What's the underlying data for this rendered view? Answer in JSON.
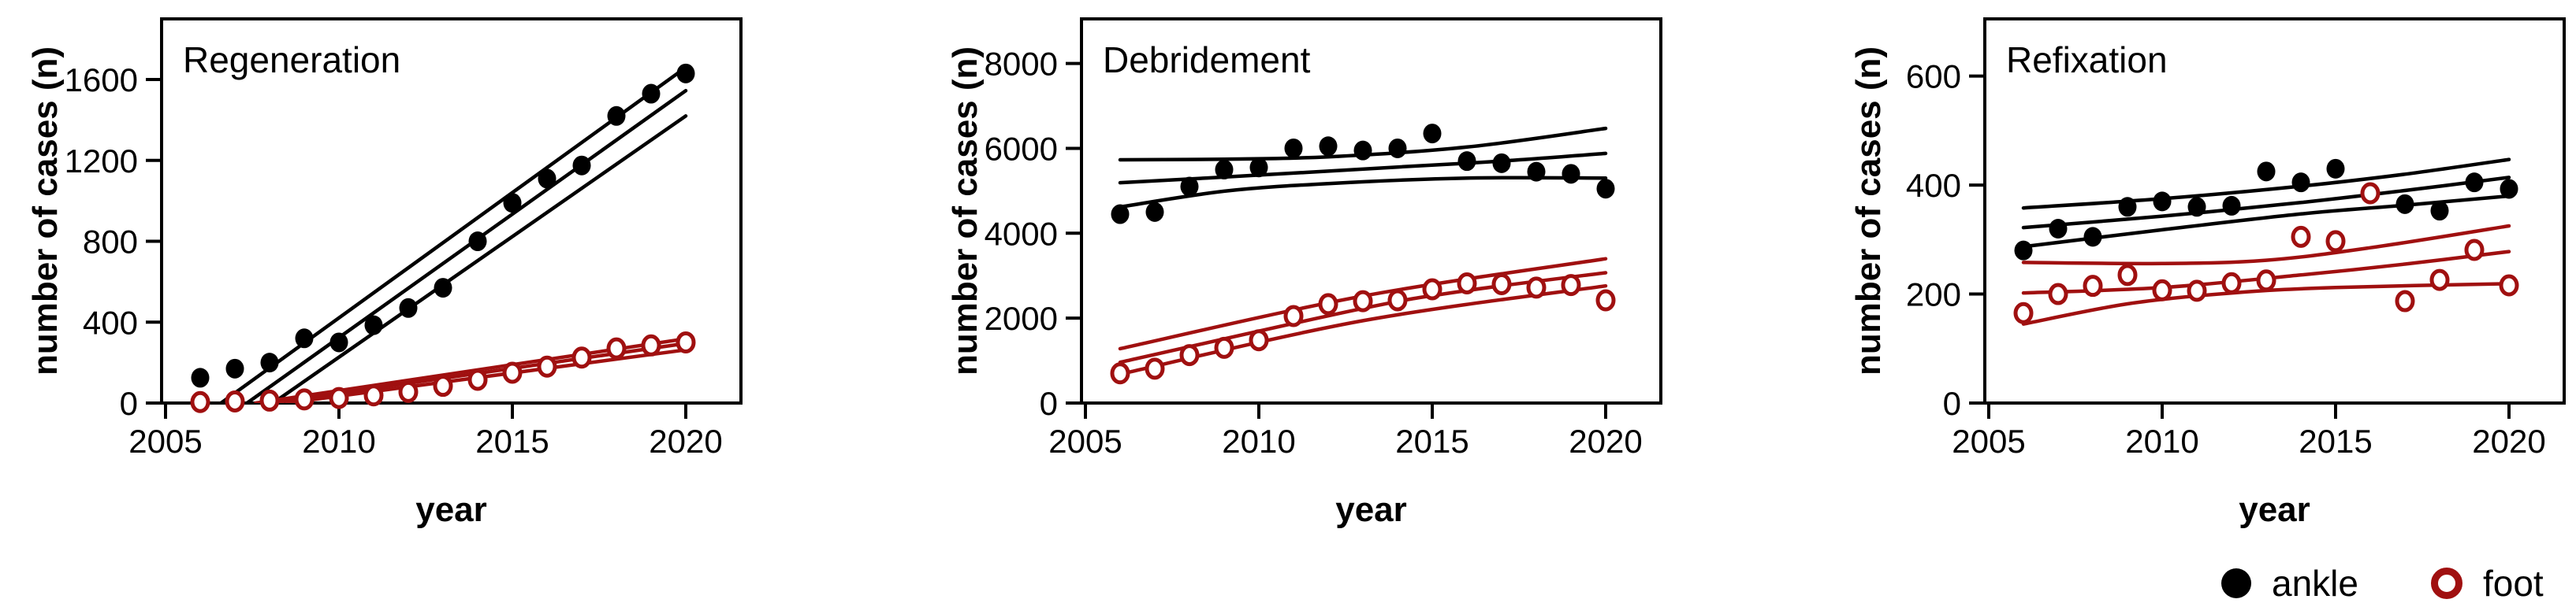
{
  "figure": {
    "background": "#ffffff"
  },
  "colors": {
    "ankle": "#000000",
    "foot": "#a01010",
    "axis": "#000000",
    "text": "#000000"
  },
  "legend": {
    "position": "bottom-right",
    "items": [
      {
        "label": "ankle",
        "marker": "filled-circle",
        "color": "#000000"
      },
      {
        "label": "foot",
        "marker": "open-circle",
        "color": "#a01010"
      }
    ]
  },
  "chart_data": [
    {
      "type": "scatter",
      "title": "Regeneration",
      "xlabel": "year",
      "ylabel": "number of cases (n)",
      "x_ticks": [
        2005,
        2010,
        2015,
        2020
      ],
      "y_ticks": [
        0,
        400,
        800,
        1200,
        1600
      ],
      "xlim": [
        2004.5,
        2021.6
      ],
      "ylim": [
        0,
        1900
      ],
      "grid": false,
      "x": [
        2006,
        2007,
        2008,
        2009,
        2010,
        2011,
        2012,
        2013,
        2014,
        2015,
        2016,
        2017,
        2018,
        2019,
        2020
      ],
      "series": [
        {
          "name": "ankle",
          "marker": "filled",
          "color": "#000000",
          "values": [
            125,
            170,
            200,
            320,
            300,
            385,
            470,
            570,
            800,
            990,
            1110,
            1175,
            1420,
            1530,
            1630
          ]
        },
        {
          "name": "foot",
          "marker": "open",
          "color": "#a01010",
          "values": [
            5,
            8,
            12,
            18,
            25,
            38,
            55,
            85,
            115,
            150,
            180,
            225,
            270,
            285,
            300
          ]
        }
      ],
      "fit_lines": [
        {
          "series": "ankle",
          "role": "ci-upper",
          "points": [
            [
              2006.6,
              0
            ],
            [
              2020,
              1660
            ]
          ]
        },
        {
          "series": "ankle",
          "role": "center",
          "points": [
            [
              2007.35,
              0
            ],
            [
              2020,
              1545
            ]
          ]
        },
        {
          "series": "ankle",
          "role": "ci-lower",
          "points": [
            [
              2008.1,
              0
            ],
            [
              2020,
              1420
            ]
          ]
        },
        {
          "series": "foot",
          "role": "ci-upper",
          "points": [
            [
              2007.6,
              0
            ],
            [
              2020,
              318
            ]
          ]
        },
        {
          "series": "foot",
          "role": "center",
          "points": [
            [
              2008.05,
              0
            ],
            [
              2020,
              295
            ]
          ]
        },
        {
          "series": "foot",
          "role": "ci-lower",
          "points": [
            [
              2008.5,
              0
            ],
            [
              2020,
              263
            ]
          ]
        }
      ]
    },
    {
      "type": "scatter",
      "title": "Debridement",
      "xlabel": "year",
      "ylabel": "number of cases (n)",
      "x_ticks": [
        2005,
        2010,
        2015,
        2020
      ],
      "y_ticks": [
        0,
        2000,
        4000,
        6000,
        8000
      ],
      "xlim": [
        2004.5,
        2021.6
      ],
      "ylim": [
        0,
        9050
      ],
      "grid": false,
      "x": [
        2006,
        2007,
        2008,
        2009,
        2010,
        2011,
        2012,
        2013,
        2014,
        2015,
        2016,
        2017,
        2018,
        2019,
        2020
      ],
      "series": [
        {
          "name": "ankle",
          "marker": "filled",
          "color": "#000000",
          "values": [
            4450,
            4500,
            5100,
            5500,
            5550,
            6000,
            6050,
            5950,
            6000,
            6350,
            5700,
            5650,
            5450,
            5400,
            5050
          ]
        },
        {
          "name": "foot",
          "marker": "open",
          "color": "#a01010",
          "values": [
            700,
            810,
            1130,
            1300,
            1480,
            2050,
            2330,
            2400,
            2420,
            2680,
            2820,
            2800,
            2720,
            2780,
            2420
          ]
        }
      ],
      "fit_lines": [
        {
          "series": "ankle",
          "role": "ci-upper",
          "points": [
            [
              2006,
              5730
            ],
            [
              2009,
              5745
            ],
            [
              2012,
              5800
            ],
            [
              2016,
              6030
            ],
            [
              2020,
              6470
            ]
          ]
        },
        {
          "series": "ankle",
          "role": "center",
          "points": [
            [
              2006,
              5190
            ],
            [
              2010,
              5370
            ],
            [
              2014,
              5560
            ],
            [
              2017,
              5700
            ],
            [
              2020,
              5880
            ]
          ]
        },
        {
          "series": "ankle",
          "role": "ci-lower",
          "points": [
            [
              2006,
              4620
            ],
            [
              2009,
              4990
            ],
            [
              2012,
              5170
            ],
            [
              2016,
              5300
            ],
            [
              2020,
              5300
            ]
          ]
        },
        {
          "series": "foot",
          "role": "ci-upper",
          "points": [
            [
              2006,
              1280
            ],
            [
              2013,
              2520
            ],
            [
              2020,
              3400
            ]
          ]
        },
        {
          "series": "foot",
          "role": "center",
          "points": [
            [
              2006,
              960
            ],
            [
              2013,
              2230
            ],
            [
              2016,
              2650
            ],
            [
              2020,
              3070
            ]
          ]
        },
        {
          "series": "foot",
          "role": "ci-lower",
          "points": [
            [
              2006,
              680
            ],
            [
              2013,
              1940
            ],
            [
              2020,
              2760
            ]
          ]
        }
      ]
    },
    {
      "type": "scatter",
      "title": "Refixation",
      "xlabel": "year",
      "ylabel": "number of cases (n)",
      "x_ticks": [
        2005,
        2010,
        2015,
        2020
      ],
      "y_ticks": [
        0,
        200,
        400,
        600
      ],
      "xlim": [
        2004.5,
        2021.6
      ],
      "ylim": [
        0,
        705
      ],
      "grid": false,
      "x": [
        2006,
        2007,
        2008,
        2009,
        2010,
        2011,
        2012,
        2013,
        2014,
        2015,
        2016,
        2017,
        2018,
        2019,
        2020
      ],
      "series": [
        {
          "name": "ankle",
          "marker": "filled",
          "color": "#000000",
          "values": [
            280,
            320,
            305,
            360,
            370,
            360,
            362,
            425,
            405,
            430,
            385,
            365,
            353,
            405,
            393
          ]
        },
        {
          "name": "foot",
          "marker": "open",
          "color": "#a01010",
          "values": [
            165,
            200,
            215,
            235,
            207,
            206,
            220,
            225,
            305,
            297,
            385,
            187,
            226,
            281,
            216
          ]
        }
      ],
      "fit_lines": [
        {
          "series": "ankle",
          "role": "ci-upper",
          "points": [
            [
              2006,
              358
            ],
            [
              2010,
              375
            ],
            [
              2014,
              398
            ],
            [
              2017,
              420
            ],
            [
              2020,
              447
            ]
          ]
        },
        {
          "series": "ankle",
          "role": "center",
          "points": [
            [
              2006,
              322
            ],
            [
              2010,
              343
            ],
            [
              2014,
              368
            ],
            [
              2017,
              390
            ],
            [
              2020,
              414
            ]
          ]
        },
        {
          "series": "ankle",
          "role": "ci-lower",
          "points": [
            [
              2006,
              287
            ],
            [
              2010,
              318
            ],
            [
              2014,
              347
            ],
            [
              2017,
              363
            ],
            [
              2020,
              380
            ]
          ]
        },
        {
          "series": "foot",
          "role": "ci-upper",
          "points": [
            [
              2006,
              258
            ],
            [
              2010,
              256
            ],
            [
              2013,
              262
            ],
            [
              2016,
              285
            ],
            [
              2020,
              325
            ]
          ]
        },
        {
          "series": "foot",
          "role": "center",
          "points": [
            [
              2006,
              202
            ],
            [
              2010,
              212
            ],
            [
              2014,
              235
            ],
            [
              2017,
              255
            ],
            [
              2020,
              278
            ]
          ]
        },
        {
          "series": "foot",
          "role": "ci-lower",
          "points": [
            [
              2006,
              145
            ],
            [
              2009,
              182
            ],
            [
              2012,
              202
            ],
            [
              2015,
              212
            ],
            [
              2020,
              219
            ]
          ]
        }
      ]
    }
  ]
}
